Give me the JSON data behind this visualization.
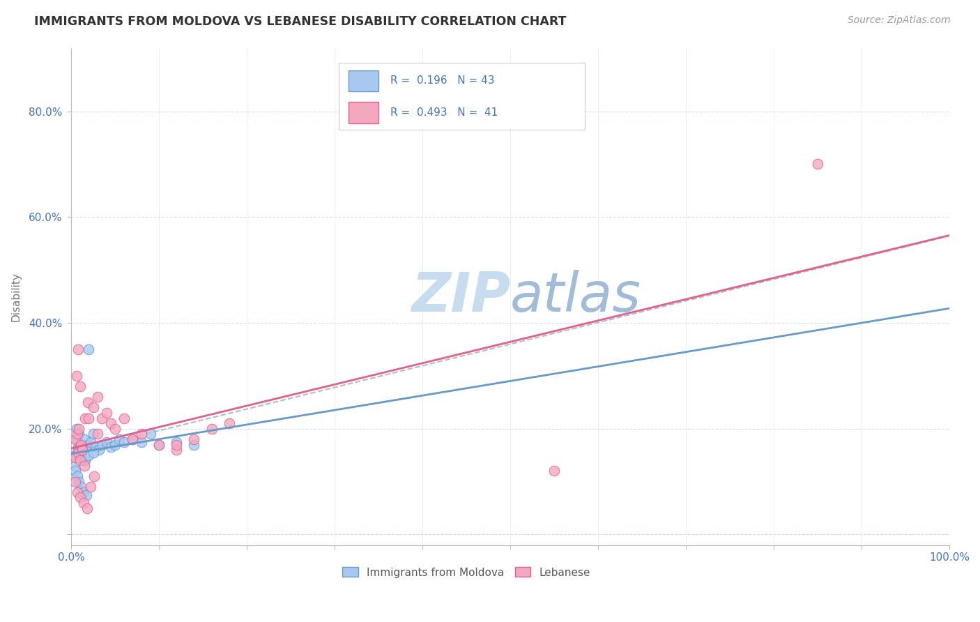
{
  "title": "IMMIGRANTS FROM MOLDOVA VS LEBANESE DISABILITY CORRELATION CHART",
  "source": "Source: ZipAtlas.com",
  "ylabel": "Disability",
  "xlim": [
    0,
    1.0
  ],
  "ylim": [
    -0.02,
    0.92
  ],
  "xticks": [
    0.0,
    0.1,
    0.2,
    0.3,
    0.4,
    0.5,
    0.6,
    0.7,
    0.8,
    0.9,
    1.0
  ],
  "ytick_vals": [
    0.0,
    0.2,
    0.4,
    0.6,
    0.8
  ],
  "xtick_labels": [
    "0.0%",
    "",
    "",
    "",
    "",
    "",
    "",
    "",
    "",
    "",
    "100.0%"
  ],
  "blue_color": "#A8C8F0",
  "pink_color": "#F4A8C0",
  "blue_edge_color": "#6699CC",
  "pink_edge_color": "#E06090",
  "pink_line_color": "#E06090",
  "blue_line_color": "#6699CC",
  "gray_line_color": "#BBBBBB",
  "background": "#FFFFFF",
  "grid_color": "#CCDDEE",
  "watermark_color": "#C8DCF0",
  "figsize": [
    14.06,
    8.92
  ],
  "dpi": 100,
  "moldova_scatter_x": [
    0.005,
    0.008,
    0.01,
    0.012,
    0.015,
    0.018,
    0.005,
    0.007,
    0.009,
    0.011,
    0.013,
    0.016,
    0.019,
    0.006,
    0.008,
    0.01,
    0.012,
    0.015,
    0.02,
    0.022,
    0.025,
    0.028,
    0.032,
    0.035,
    0.04,
    0.045,
    0.05,
    0.055,
    0.06,
    0.07,
    0.08,
    0.09,
    0.1,
    0.12,
    0.14,
    0.005,
    0.007,
    0.009,
    0.011,
    0.014,
    0.017,
    0.02,
    0.025
  ],
  "moldova_scatter_y": [
    0.15,
    0.16,
    0.145,
    0.155,
    0.14,
    0.17,
    0.13,
    0.18,
    0.19,
    0.15,
    0.16,
    0.14,
    0.17,
    0.2,
    0.165,
    0.17,
    0.16,
    0.18,
    0.15,
    0.175,
    0.19,
    0.165,
    0.16,
    0.17,
    0.175,
    0.165,
    0.17,
    0.18,
    0.175,
    0.18,
    0.175,
    0.19,
    0.17,
    0.175,
    0.17,
    0.12,
    0.11,
    0.1,
    0.09,
    0.08,
    0.075,
    0.35,
    0.155
  ],
  "lebanese_scatter_x": [
    0.005,
    0.008,
    0.01,
    0.012,
    0.015,
    0.005,
    0.007,
    0.009,
    0.011,
    0.013,
    0.016,
    0.019,
    0.006,
    0.008,
    0.01,
    0.02,
    0.025,
    0.03,
    0.035,
    0.04,
    0.045,
    0.05,
    0.06,
    0.07,
    0.08,
    0.1,
    0.12,
    0.14,
    0.16,
    0.18,
    0.12,
    0.55,
    0.005,
    0.007,
    0.01,
    0.014,
    0.018,
    0.022,
    0.026,
    0.03,
    0.85
  ],
  "lebanese_scatter_y": [
    0.145,
    0.155,
    0.14,
    0.165,
    0.13,
    0.18,
    0.19,
    0.2,
    0.17,
    0.16,
    0.22,
    0.25,
    0.3,
    0.35,
    0.28,
    0.22,
    0.24,
    0.26,
    0.22,
    0.23,
    0.21,
    0.2,
    0.22,
    0.18,
    0.19,
    0.17,
    0.16,
    0.18,
    0.2,
    0.21,
    0.17,
    0.12,
    0.1,
    0.08,
    0.07,
    0.06,
    0.05,
    0.09,
    0.11,
    0.19,
    0.7
  ]
}
